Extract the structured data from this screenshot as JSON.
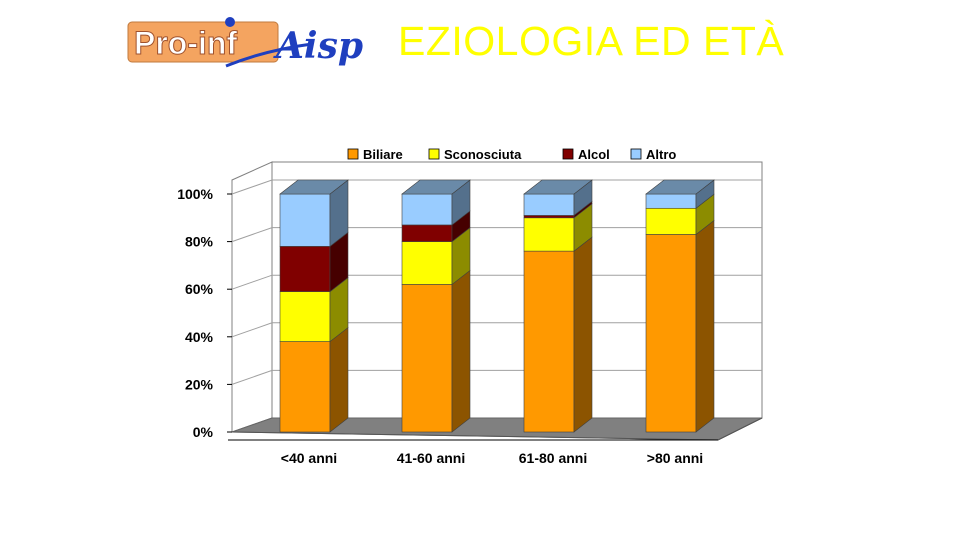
{
  "slide": {
    "title": "EZIOLOGIA ED ETÀ"
  },
  "logo": {
    "name": "Pro-infAisp",
    "part1": "Pro-inf",
    "part2": "Aisp",
    "colors": {
      "box": "#f4a460",
      "box_text": "#ffffff",
      "script": "#1f3fbf"
    }
  },
  "chart_data": {
    "type": "bar",
    "stacked": true,
    "percent": true,
    "three_d": true,
    "categories": [
      "<40 anni",
      "41-60 anni",
      "61-80 anni",
      ">80 anni"
    ],
    "series": [
      {
        "name": "Biliare",
        "color": "#ff9900",
        "values": [
          38,
          62,
          76,
          83
        ]
      },
      {
        "name": "Sconosciuta",
        "color": "#ffff00",
        "values": [
          21,
          18,
          14,
          11
        ]
      },
      {
        "name": "Alcol",
        "color": "#800000",
        "values": [
          19,
          7,
          1,
          0
        ]
      },
      {
        "name": "Altro",
        "color": "#99ccff",
        "values": [
          22,
          13,
          9,
          6
        ]
      }
    ],
    "y_ticks": [
      "0%",
      "20%",
      "40%",
      "60%",
      "80%",
      "100%"
    ],
    "ylim": [
      0,
      100
    ],
    "legend_position": "top",
    "grid": true
  }
}
